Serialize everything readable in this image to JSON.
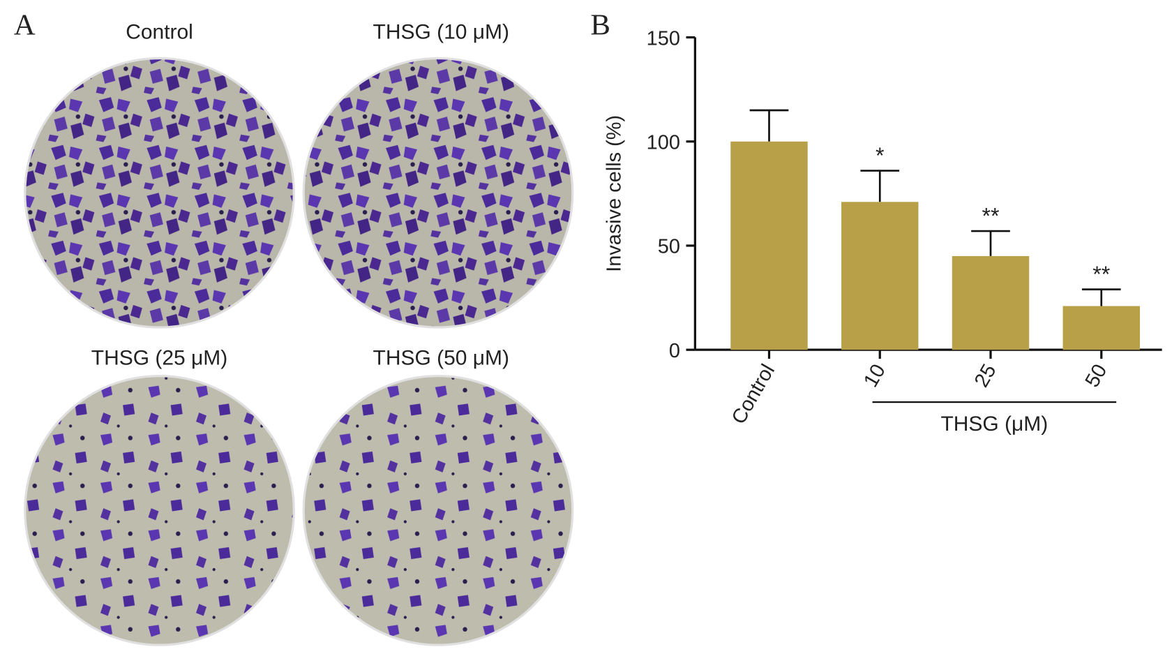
{
  "panel_a": {
    "label": "A",
    "images": [
      {
        "title": "Control"
      },
      {
        "title": "THSG (10 μM)"
      },
      {
        "title": "THSG (25 μM)"
      },
      {
        "title": "THSG (50 μM)"
      }
    ]
  },
  "chart_data": {
    "type": "bar",
    "label": "B",
    "categories": [
      "Control",
      "10",
      "25",
      "50"
    ],
    "values": [
      100,
      71,
      45,
      21
    ],
    "errors": [
      15,
      15,
      12,
      8
    ],
    "value_annotations": [
      null,
      "*",
      "**",
      "**"
    ],
    "color": "#b8a048",
    "y_label": "Invasive cells (%)",
    "x_group_label": "THSG (μM)",
    "ylim": [
      0,
      150
    ],
    "yticks": [
      0,
      50,
      100,
      150
    ]
  }
}
